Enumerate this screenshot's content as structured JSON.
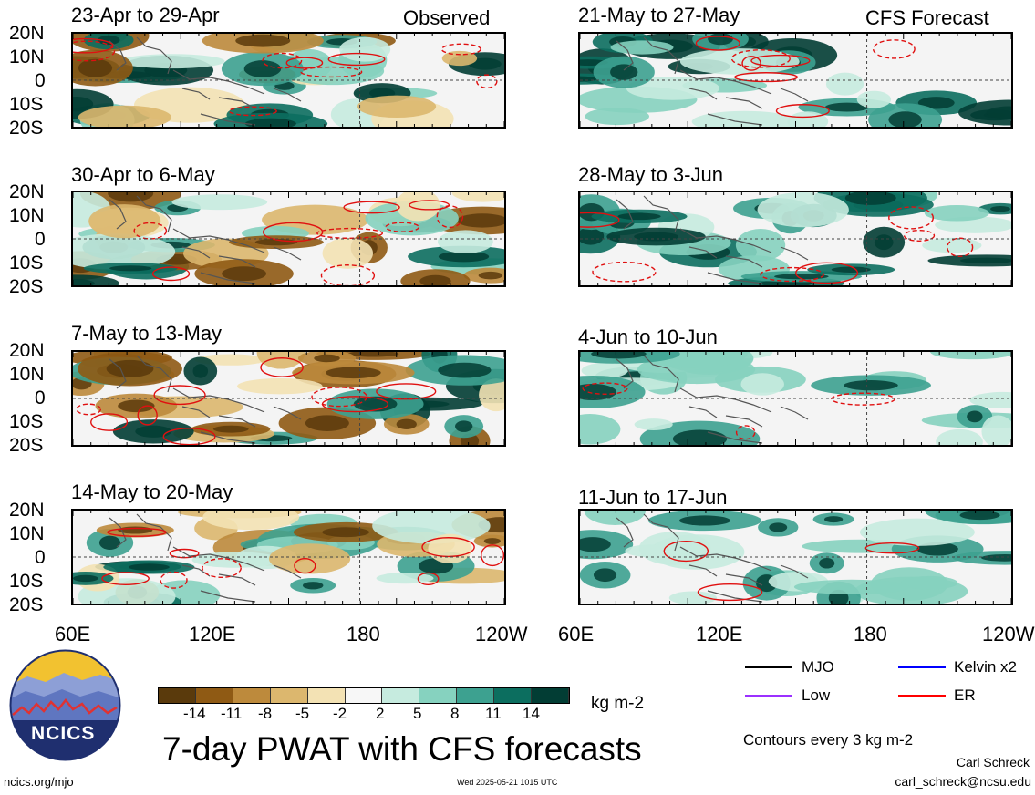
{
  "panels": [
    {
      "title": "23-Apr to 29-Apr",
      "tag": "Observed"
    },
    {
      "title": "21-May to 27-May",
      "tag": "CFS Forecast"
    },
    {
      "title": "30-Apr to 6-May",
      "tag": ""
    },
    {
      "title": "28-May to 3-Jun",
      "tag": ""
    },
    {
      "title": "7-May to 13-May",
      "tag": ""
    },
    {
      "title": "4-Jun to 10-Jun",
      "tag": ""
    },
    {
      "title": "14-May to 20-May",
      "tag": ""
    },
    {
      "title": "11-Jun to 17-Jun",
      "tag": ""
    }
  ],
  "lat_labels": [
    "20N",
    "10N",
    "0",
    "10S",
    "20S"
  ],
  "lon_labels": [
    "60E",
    "120E",
    "180",
    "120W"
  ],
  "colorbar": {
    "ticks": [
      "-14",
      "-11",
      "-8",
      "-5",
      "-2",
      "2",
      "5",
      "8",
      "11",
      "14"
    ],
    "colors": [
      "#5a3a0c",
      "#8f5a14",
      "#bd8a3c",
      "#dcb76e",
      "#f3e2b4",
      "#f7f7f7",
      "#c6ebdf",
      "#86d2bf",
      "#3da190",
      "#0c6e5f",
      "#023d34"
    ],
    "units": "kg m-2"
  },
  "chart_title": "7-day PWAT with CFS forecasts",
  "legend": [
    {
      "label": "MJO",
      "color": "#000000"
    },
    {
      "label": "Kelvin x2",
      "color": "#0000ff"
    },
    {
      "label": "Low",
      "color": "#9b30ff"
    },
    {
      "label": "ER",
      "color": "#ff0000"
    }
  ],
  "contour_note": "Contours every 3 kg m-2",
  "author": "Carl Schreck",
  "email": "carl_schreck@ncsu.edu",
  "website": "ncics.org/mjo",
  "timestamp": "Wed 2025-05-21 1015 UTC",
  "logo_text": "NCICS",
  "chart_data": {
    "type": "heatmap",
    "title": "7-day PWAT with CFS forecasts",
    "variable": "PWAT anomaly",
    "units": "kg m-2",
    "contour_interval": 3,
    "x_ticks": [
      "60E",
      "120E",
      "180",
      "120W"
    ],
    "y_ticks": [
      "20N",
      "10N",
      "0",
      "10S",
      "20S"
    ],
    "xlim": [
      "60E",
      "120W"
    ],
    "ylim": [
      "20S",
      "20N"
    ],
    "color_levels": [
      -14,
      -11,
      -8,
      -5,
      -2,
      2,
      5,
      8,
      11,
      14
    ],
    "observed_periods": [
      "23-Apr to 29-Apr",
      "30-Apr to 6-May",
      "7-May to 13-May",
      "14-May to 20-May"
    ],
    "forecast_periods": [
      "21-May to 27-May",
      "28-May to 3-Jun",
      "4-Jun to 10-Jun",
      "11-Jun to 17-Jun"
    ],
    "contour_series": [
      "MJO",
      "Kelvin x2",
      "Low",
      "ER"
    ]
  }
}
